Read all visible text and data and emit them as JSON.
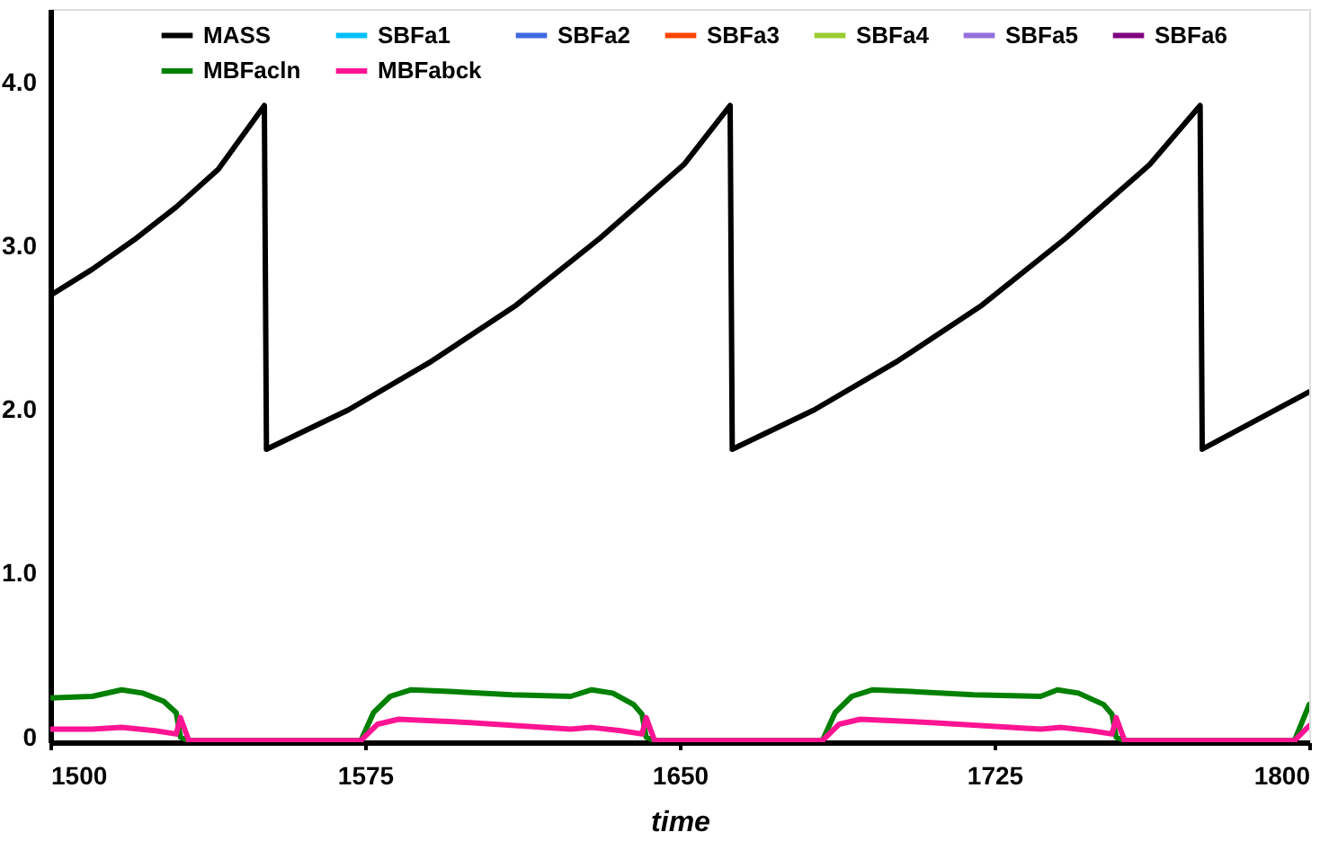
{
  "chart_data": {
    "type": "line",
    "xlabel": "time",
    "xlim": [
      1500,
      1800
    ],
    "xticks": [
      1500,
      1575,
      1650,
      1725,
      1800
    ],
    "ylim": [
      -0.03,
      4.45
    ],
    "yticks": [
      0,
      {
        "value": 1,
        "label": "1.0"
      },
      {
        "value": 2,
        "label": "2.0"
      },
      {
        "value": 3,
        "label": "3.0"
      },
      {
        "value": 4,
        "label": "4.0"
      }
    ],
    "grid": false,
    "legend": "top",
    "marker": "none",
    "line_style": "solid",
    "series": [
      {
        "name": "MASS",
        "color": "#000000",
        "x": [
          1500,
          1510,
          1520,
          1530,
          1540,
          1551,
          1551.5,
          1571,
          1591,
          1611,
          1631,
          1651,
          1662,
          1662.5,
          1682,
          1702,
          1722,
          1742,
          1762,
          1774,
          1774.5,
          1800
        ],
        "values": [
          2.7,
          2.86,
          3.04,
          3.24,
          3.47,
          3.86,
          1.76,
          2.0,
          2.3,
          2.64,
          3.05,
          3.5,
          3.86,
          1.76,
          2.0,
          2.3,
          2.64,
          3.05,
          3.5,
          3.86,
          1.76,
          2.11
        ]
      },
      {
        "name": "SBFa1",
        "color": "#00bfff"
      },
      {
        "name": "SBFa2",
        "color": "#4169e1"
      },
      {
        "name": "SBFa3",
        "color": "#ff4500"
      },
      {
        "name": "SBFa4",
        "color": "#9acd32"
      },
      {
        "name": "SBFa5",
        "color": "#9370db"
      },
      {
        "name": "SBFa6",
        "color": "#800080"
      },
      {
        "name": "MBFacln",
        "color": "#008000",
        "x": [
          1500,
          1510,
          1517,
          1522,
          1527,
          1530,
          1531,
          1533,
          1574,
          1577,
          1581,
          1586,
          1595,
          1610,
          1624,
          1629,
          1634,
          1639,
          1641,
          1642,
          1644,
          1684,
          1687,
          1691,
          1696,
          1705,
          1720,
          1736,
          1740,
          1745,
          1751,
          1753,
          1754,
          1756,
          1796.5,
          1800
        ],
        "values": [
          0.24,
          0.25,
          0.29,
          0.27,
          0.22,
          0.15,
          0.0,
          -0.02,
          -0.02,
          0.15,
          0.25,
          0.29,
          0.28,
          0.26,
          0.25,
          0.29,
          0.27,
          0.2,
          0.14,
          0.0,
          -0.02,
          -0.02,
          0.15,
          0.25,
          0.29,
          0.28,
          0.26,
          0.25,
          0.29,
          0.27,
          0.2,
          0.14,
          0.0,
          -0.02,
          -0.02,
          0.2
        ]
      },
      {
        "name": "MBFabck",
        "color": "#ff1493",
        "x": [
          1500,
          1510,
          1517,
          1525,
          1530,
          1531,
          1533,
          1574,
          1578,
          1583,
          1600,
          1624,
          1629,
          1636,
          1641,
          1642,
          1644,
          1684,
          1688,
          1693,
          1710,
          1736,
          1741,
          1748,
          1753,
          1754,
          1756,
          1796.5,
          1800
        ],
        "values": [
          0.05,
          0.05,
          0.06,
          0.04,
          0.02,
          0.12,
          -0.02,
          -0.02,
          0.08,
          0.11,
          0.09,
          0.05,
          0.06,
          0.04,
          0.02,
          0.12,
          -0.02,
          -0.02,
          0.08,
          0.11,
          0.09,
          0.05,
          0.06,
          0.04,
          0.02,
          0.12,
          -0.02,
          -0.02,
          0.07
        ]
      }
    ]
  }
}
